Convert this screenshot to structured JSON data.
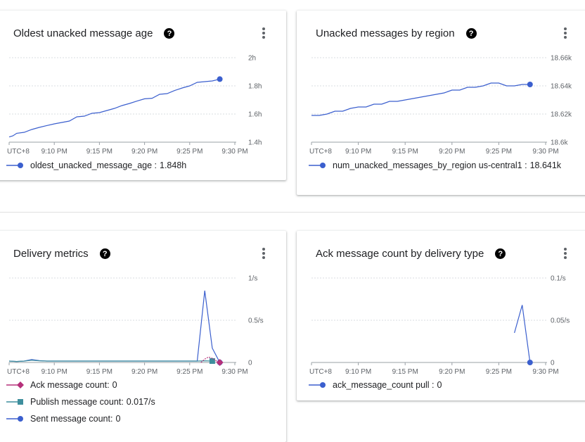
{
  "cards": [
    {
      "title": "Oldest unacked message age",
      "legend": [
        {
          "name": "oldest_unacked_message_age",
          "value": "1.848h",
          "color": "#3b5fce",
          "marker": "circle"
        }
      ]
    },
    {
      "title": "Unacked messages by region",
      "legend": [
        {
          "name": "num_unacked_messages_by_region us-central1",
          "value": "18.641k",
          "color": "#3b5fce",
          "marker": "circle"
        }
      ]
    },
    {
      "title": "Delivery metrics",
      "legend": [
        {
          "name": "Ack message count:",
          "value": "0",
          "color": "#b5307a",
          "marker": "diamond"
        },
        {
          "name": "Publish message count:",
          "value": "0.017/s",
          "color": "#3e8e9d",
          "marker": "square"
        },
        {
          "name": "Sent message count:",
          "value": "0",
          "color": "#3b5fce",
          "marker": "circle"
        }
      ]
    },
    {
      "title": "Ack message count by delivery type",
      "legend": [
        {
          "name": "ack_message_count pull",
          "value": "0",
          "color": "#3b5fce",
          "marker": "circle"
        }
      ]
    }
  ],
  "chart_data": [
    {
      "type": "line",
      "title": "Oldest unacked message age",
      "x_ticks": [
        "UTC+8",
        "9:10 PM",
        "9:15 PM",
        "9:20 PM",
        "9:25 PM",
        "9:30 PM"
      ],
      "y_ticks": [
        "1.4h",
        "1.6h",
        "1.8h",
        "2h"
      ],
      "ylim": [
        1.4,
        2.0
      ],
      "x_range_minutes": [
        0,
        30
      ],
      "series": [
        {
          "name": "oldest_unacked_message_age",
          "x": [
            0,
            0.5,
            1,
            2,
            3,
            4,
            5,
            6,
            7,
            8,
            9,
            10,
            11,
            12,
            13,
            14,
            15,
            16,
            17,
            18,
            19,
            20,
            21,
            22,
            23,
            24,
            25,
            26,
            27,
            28
          ],
          "y": [
            1.437,
            1.445,
            1.463,
            1.47,
            1.49,
            1.505,
            1.518,
            1.53,
            1.54,
            1.55,
            1.58,
            1.585,
            1.605,
            1.61,
            1.625,
            1.64,
            1.66,
            1.675,
            1.692,
            1.708,
            1.712,
            1.74,
            1.745,
            1.767,
            1.785,
            1.8,
            1.825,
            1.83,
            1.835,
            1.848
          ]
        }
      ]
    },
    {
      "type": "line",
      "title": "Unacked messages by region",
      "x_ticks": [
        "UTC+8",
        "9:10 PM",
        "9:15 PM",
        "9:20 PM",
        "9:25 PM",
        "9:30 PM"
      ],
      "y_ticks": [
        "18.6k",
        "18.62k",
        "18.64k",
        "18.66k"
      ],
      "ylim": [
        18600,
        18660
      ],
      "x_range_minutes": [
        0,
        30
      ],
      "series": [
        {
          "name": "num_unacked_messages_by_region us-central1",
          "x": [
            0,
            1,
            2,
            3,
            4,
            5,
            6,
            7,
            8,
            9,
            10,
            11,
            12,
            13,
            14,
            15,
            16,
            17,
            18,
            19,
            20,
            21,
            22,
            23,
            24,
            25,
            26,
            27,
            28
          ],
          "y": [
            18619,
            18619,
            18620,
            18622,
            18622,
            18624,
            18625,
            18625,
            18627,
            18627,
            18629,
            18629,
            18630,
            18631,
            18632,
            18633,
            18634,
            18635,
            18637,
            18637,
            18639,
            18639,
            18640,
            18642,
            18642,
            18640,
            18640,
            18641,
            18641
          ]
        }
      ]
    },
    {
      "type": "line",
      "title": "Delivery metrics",
      "x_ticks": [
        "UTC+8",
        "9:10 PM",
        "9:15 PM",
        "9:20 PM",
        "9:25 PM",
        "9:30 PM"
      ],
      "y_ticks": [
        "0",
        "0.5/s",
        "1/s"
      ],
      "ylim": [
        0,
        1.0
      ],
      "x_range_minutes": [
        0,
        30
      ],
      "series": [
        {
          "name": "Sent message count",
          "x": [
            0,
            1,
            2,
            3,
            4,
            5,
            6,
            7,
            8,
            9,
            10,
            11,
            12,
            13,
            14,
            15,
            16,
            17,
            18,
            19,
            20,
            21,
            22,
            23,
            24,
            25,
            26,
            27,
            28
          ],
          "y": [
            0.017,
            0.012,
            0.017,
            0.035,
            0.022,
            0.017,
            0.017,
            0.017,
            0.017,
            0.017,
            0.017,
            0.017,
            0.017,
            0.017,
            0.017,
            0.017,
            0.017,
            0.017,
            0.017,
            0.017,
            0.017,
            0.017,
            0.017,
            0.017,
            0.017,
            0.017,
            0.85,
            0.17,
            0.0
          ]
        },
        {
          "name": "Publish message count",
          "x": [
            0,
            1,
            2,
            3,
            4,
            5,
            6,
            7,
            8,
            9,
            10,
            11,
            12,
            13,
            14,
            15,
            16,
            17,
            18,
            19,
            20,
            21,
            22,
            23,
            24,
            25,
            26,
            27
          ],
          "y": [
            0.017,
            0.012,
            0.017,
            0.027,
            0.02,
            0.017,
            0.017,
            0.017,
            0.017,
            0.017,
            0.017,
            0.017,
            0.017,
            0.017,
            0.017,
            0.017,
            0.017,
            0.017,
            0.017,
            0.017,
            0.017,
            0.017,
            0.017,
            0.017,
            0.017,
            0.017,
            0.02,
            0.017
          ]
        },
        {
          "name": "Ack message count",
          "x": [
            25.5,
            26,
            26.5,
            27,
            27.5,
            28
          ],
          "y": [
            0.0,
            0.04,
            0.065,
            0.05,
            0.02,
            0.0
          ]
        }
      ]
    },
    {
      "type": "line",
      "title": "Ack message count by delivery type",
      "x_ticks": [
        "UTC+8",
        "9:10 PM",
        "9:15 PM",
        "9:20 PM",
        "9:25 PM",
        "9:30 PM"
      ],
      "y_ticks": [
        "0",
        "0.05/s",
        "0.1/s"
      ],
      "ylim": [
        0,
        0.1
      ],
      "x_range_minutes": [
        0,
        30
      ],
      "series": [
        {
          "name": "ack_message_count pull",
          "x": [
            26,
            27,
            28
          ],
          "y": [
            0.035,
            0.068,
            0.0
          ]
        }
      ]
    }
  ]
}
